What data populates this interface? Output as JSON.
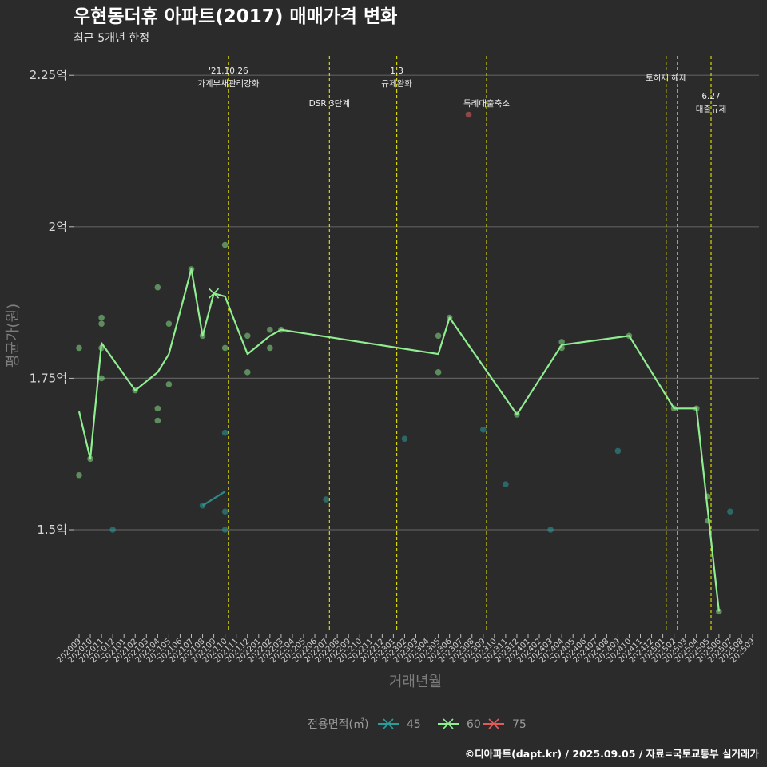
{
  "header": {
    "title": "우현동더휴 아파트(2017) 매매가격 변화",
    "subtitle": "최근 5개년 한정"
  },
  "caption": "©디아파트(dapt.kr) / 2025.09.05 / 자료=국토교통부 실거래가",
  "chart_data": {
    "type": "line",
    "title": "우현동더휴 아파트(2017) 매매가격 변화",
    "subtitle": "최근 5개년 한정",
    "xlabel": "거래년월",
    "ylabel": "평균가(원)",
    "ylim": [
      1.33,
      2.28
    ],
    "y_ticks": [
      {
        "value": 1.5,
        "label": "1.5억"
      },
      {
        "value": 1.75,
        "label": "1.75억"
      },
      {
        "value": 2.0,
        "label": "2억"
      },
      {
        "value": 2.25,
        "label": "2.25억"
      }
    ],
    "x_start": "202009",
    "x_months": [
      "202009",
      "202010",
      "202011",
      "202012",
      "202101",
      "202102",
      "202103",
      "202104",
      "202105",
      "202106",
      "202107",
      "202108",
      "202109",
      "202110",
      "202111",
      "202112",
      "202201",
      "202202",
      "202203",
      "202204",
      "202205",
      "202206",
      "202207",
      "202208",
      "202209",
      "202210",
      "202211",
      "202212",
      "202301",
      "202302",
      "202303",
      "202304",
      "202305",
      "202306",
      "202307",
      "202308",
      "202309",
      "202310",
      "202311",
      "202312",
      "202401",
      "202402",
      "202403",
      "202404",
      "202405",
      "202406",
      "202407",
      "202408",
      "202409",
      "202410",
      "202411",
      "202412",
      "202501",
      "202502",
      "202503",
      "202504",
      "202505",
      "202506",
      "202507",
      "202508",
      "202509"
    ],
    "legend": {
      "title": "전용면적(㎡)",
      "entries": [
        {
          "name": "45",
          "color": "#2a9d9a"
        },
        {
          "name": "60",
          "color": "#90ee90"
        },
        {
          "name": "75",
          "color": "#e05c5c"
        }
      ]
    },
    "events": [
      {
        "month": 13.3,
        "lines": [
          "'21.10.26",
          "가계부채관리강화"
        ],
        "row": 0
      },
      {
        "month": 22.3,
        "lines": [
          "DSR 3단계"
        ],
        "row": 2
      },
      {
        "month": 28.3,
        "lines": [
          "1.3",
          "규제완화"
        ],
        "row": 0
      },
      {
        "month": 36.3,
        "lines": [
          "특례대출축소"
        ],
        "row": 2
      },
      {
        "month": 52.3,
        "lines": [
          "토허제 해제"
        ],
        "row": 1
      },
      {
        "month": 53.3,
        "lines": [],
        "row": 1
      },
      {
        "month": 56.3,
        "lines": [
          "6.27",
          "대출규제"
        ],
        "row": 3
      }
    ],
    "series": [
      {
        "name": "60",
        "color": "#90ee90",
        "line": [
          [
            0,
            1.695
          ],
          [
            1,
            1.617
          ],
          [
            2,
            1.808
          ],
          [
            5,
            1.73
          ],
          [
            7,
            1.76
          ],
          [
            8,
            1.79
          ],
          [
            10,
            1.93
          ],
          [
            11,
            1.82
          ],
          [
            12,
            1.89
          ],
          [
            13,
            1.885
          ],
          [
            15,
            1.79
          ],
          [
            17,
            1.82
          ],
          [
            18,
            1.83
          ],
          [
            32,
            1.79
          ],
          [
            33,
            1.85
          ],
          [
            39,
            1.69
          ],
          [
            43,
            1.805
          ],
          [
            49,
            1.82
          ],
          [
            53,
            1.7
          ],
          [
            55,
            1.7
          ],
          [
            57,
            1.365
          ]
        ],
        "points": [
          [
            0,
            1.8
          ],
          [
            0,
            1.59
          ],
          [
            1,
            1.617
          ],
          [
            2,
            1.85
          ],
          [
            2,
            1.84
          ],
          [
            2,
            1.8
          ],
          [
            2,
            1.75
          ],
          [
            5,
            1.73
          ],
          [
            7,
            1.9
          ],
          [
            7,
            1.7
          ],
          [
            7,
            1.68
          ],
          [
            8,
            1.84
          ],
          [
            8,
            1.74
          ],
          [
            10,
            1.93
          ],
          [
            11,
            1.82
          ],
          [
            13,
            1.97
          ],
          [
            13,
            1.8
          ],
          [
            15,
            1.82
          ],
          [
            15,
            1.76
          ],
          [
            17,
            1.83
          ],
          [
            17,
            1.8
          ],
          [
            18,
            1.83
          ],
          [
            32,
            1.82
          ],
          [
            32,
            1.76
          ],
          [
            33,
            1.85
          ],
          [
            39,
            1.69
          ],
          [
            43,
            1.81
          ],
          [
            43,
            1.8
          ],
          [
            49,
            1.82
          ],
          [
            53,
            1.7
          ],
          [
            55,
            1.7
          ],
          [
            56,
            1.555
          ],
          [
            56,
            1.515
          ],
          [
            57,
            1.365
          ]
        ],
        "cross": [
          12,
          1.89
        ]
      },
      {
        "name": "45",
        "color": "#2a9d9a",
        "line": [
          [
            11,
            1.54
          ],
          [
            13,
            1.563
          ]
        ],
        "points": [
          [
            3,
            1.5
          ],
          [
            11,
            1.54
          ],
          [
            13,
            1.66
          ],
          [
            13,
            1.53
          ],
          [
            13,
            1.5
          ],
          [
            22,
            1.55
          ],
          [
            29,
            1.65
          ],
          [
            36,
            1.665
          ],
          [
            38,
            1.575
          ],
          [
            42,
            1.5
          ],
          [
            48,
            1.63
          ],
          [
            58,
            1.53
          ]
        ],
        "cross": null
      },
      {
        "name": "75",
        "color": "#e05c5c",
        "line": [],
        "points": [
          [
            34.7,
            2.185
          ]
        ],
        "cross": null
      }
    ]
  }
}
